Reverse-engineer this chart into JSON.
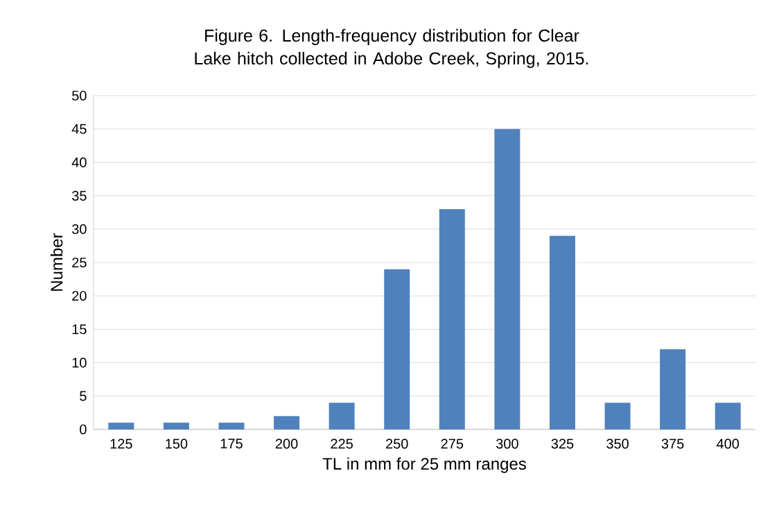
{
  "chart_data": {
    "type": "bar",
    "title": "Figure 6.  Length-frequency distribution for Clear Lake hitch collected in Adobe Creek, Spring, 2015.",
    "xlabel": "TL in mm for 25 mm ranges",
    "ylabel": "Number",
    "categories": [
      "125",
      "150",
      "175",
      "200",
      "225",
      "250",
      "275",
      "300",
      "325",
      "350",
      "375",
      "400"
    ],
    "values": [
      1,
      1,
      1,
      2,
      4,
      24,
      33,
      45,
      29,
      4,
      12,
      4
    ],
    "color": "#4f81bd",
    "ylim": [
      0,
      50
    ],
    "yticks": [
      0,
      5,
      10,
      15,
      20,
      25,
      30,
      35,
      40,
      45,
      50
    ],
    "grid": "y"
  }
}
